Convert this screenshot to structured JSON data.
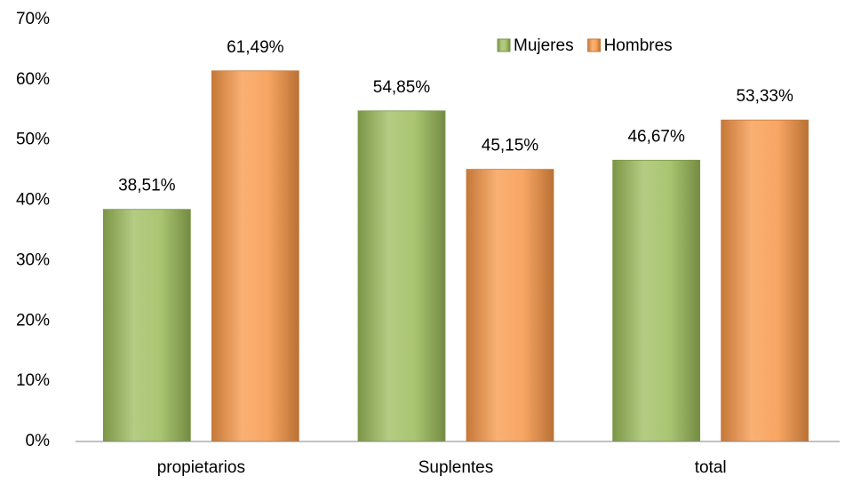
{
  "chart_data": {
    "type": "bar",
    "categories": [
      "propietarios",
      "Suplentes",
      "total"
    ],
    "series": [
      {
        "name": "Mujeres",
        "color": "#9bbb59",
        "values": [
          38.51,
          54.85,
          46.67
        ],
        "value_labels": [
          "38,51%",
          "54,85%",
          "46,67%"
        ]
      },
      {
        "name": "Hombres",
        "color": "#f79646",
        "values": [
          61.49,
          45.15,
          53.33
        ],
        "value_labels": [
          "61,49%",
          "45,15%",
          "53,33%"
        ]
      }
    ],
    "ylim": [
      0,
      70
    ],
    "yticks": [
      {
        "value": 0,
        "label": "0%"
      },
      {
        "value": 10,
        "label": "10%"
      },
      {
        "value": 20,
        "label": "20%"
      },
      {
        "value": 30,
        "label": "30%"
      },
      {
        "value": 40,
        "label": "40%"
      },
      {
        "value": 50,
        "label": "50%"
      },
      {
        "value": 60,
        "label": "60%"
      },
      {
        "value": 70,
        "label": "70%"
      }
    ],
    "grid": false,
    "legend": "top-right"
  }
}
